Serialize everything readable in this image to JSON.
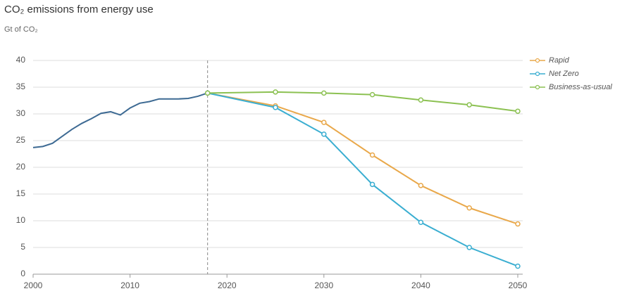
{
  "chart_data": {
    "type": "line",
    "title": "CO₂ emissions from energy use",
    "subtitle": "Gt of CO₂",
    "xlim": [
      2000,
      2050
    ],
    "xticks": [
      2000,
      2010,
      2020,
      2030,
      2040,
      2050
    ],
    "ylim": [
      0,
      40
    ],
    "yticks": [
      0,
      5,
      10,
      15,
      20,
      25,
      30,
      35,
      40
    ],
    "grid": true,
    "legend": "top-right",
    "reference_line_x": 2018,
    "series": [
      {
        "color": "#3d6a93",
        "markers": false,
        "x": [
          2000,
          2001,
          2002,
          2003,
          2004,
          2005,
          2006,
          2007,
          2008,
          2009,
          2010,
          2011,
          2012,
          2013,
          2014,
          2015,
          2016,
          2017,
          2018
        ],
        "values": [
          23.7,
          23.9,
          24.5,
          25.8,
          27.1,
          28.2,
          29.1,
          30.1,
          30.4,
          29.8,
          31.1,
          32.0,
          32.3,
          32.8,
          32.8,
          32.8,
          32.9,
          33.3,
          33.9
        ]
      },
      {
        "name": "Rapid",
        "color": "#e9a84a",
        "markers": true,
        "x": [
          2018,
          2025,
          2030,
          2035,
          2040,
          2045,
          2050
        ],
        "values": [
          33.9,
          31.5,
          28.4,
          22.3,
          16.6,
          12.4,
          9.4
        ]
      },
      {
        "name": "Net Zero",
        "color": "#3aaed1",
        "markers": true,
        "x": [
          2018,
          2025,
          2030,
          2035,
          2040,
          2045,
          2050
        ],
        "values": [
          33.9,
          31.2,
          26.2,
          16.8,
          9.7,
          5.0,
          1.5
        ]
      },
      {
        "name": "Business-as-usual",
        "color": "#8cc152",
        "markers": true,
        "x": [
          2018,
          2025,
          2030,
          2035,
          2040,
          2045,
          2050
        ],
        "values": [
          33.9,
          34.1,
          33.9,
          33.6,
          32.6,
          31.7,
          30.5
        ]
      }
    ]
  }
}
